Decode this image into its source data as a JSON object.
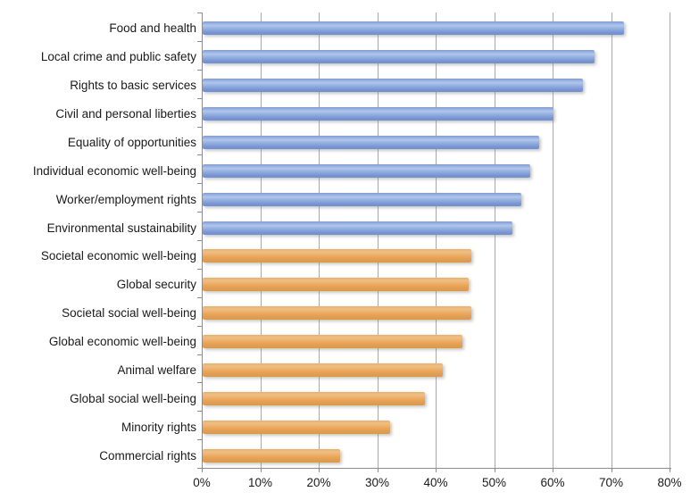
{
  "chart_data": {
    "type": "bar",
    "orientation": "horizontal",
    "categories": [
      "Food and health",
      "Local crime and public safety",
      "Rights to basic services",
      "Civil and personal liberties",
      "Equality of opportunities",
      "Individual economic well-being",
      "Worker/employment rights",
      "Environmental sustainability",
      "Societal economic well-being",
      "Global security",
      "Societal social well-being",
      "Global economic well-being",
      "Animal welfare",
      "Global social well-being",
      "Minority rights",
      "Commercial rights"
    ],
    "values": [
      72,
      67,
      65,
      60,
      57.5,
      56,
      54.5,
      53,
      46,
      45.5,
      46,
      44.5,
      41,
      38,
      32,
      23.5
    ],
    "bar_groups": [
      "blue",
      "blue",
      "blue",
      "blue",
      "blue",
      "blue",
      "blue",
      "blue",
      "orange",
      "orange",
      "orange",
      "orange",
      "orange",
      "orange",
      "orange",
      "orange"
    ],
    "palette": {
      "blue": "#7e9bd6",
      "orange": "#e7a254"
    },
    "x_axis": {
      "min": 0,
      "max": 80,
      "tick_step": 10,
      "tick_labels": [
        "0%",
        "10%",
        "20%",
        "30%",
        "40%",
        "50%",
        "60%",
        "70%",
        "80%"
      ]
    },
    "grid": true,
    "legend": false,
    "gridline_color": "#a9a9a9",
    "axis_color": "#8c8c8c",
    "text_color": "#1a1a1a"
  }
}
